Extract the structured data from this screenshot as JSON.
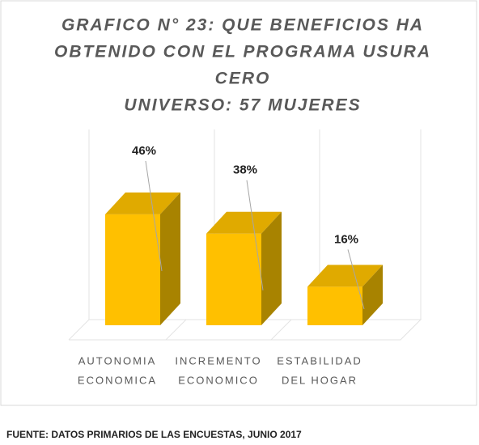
{
  "chart_data": {
    "type": "bar3d",
    "title": [
      "GRAFICO N° 23: QUE BENEFICIOS HA",
      "OBTENIDO CON EL PROGRAMA USURA",
      "CERO",
      "UNIVERSO: 57 MUJERES"
    ],
    "categories": [
      [
        "AUTONOMIA",
        "ECONOMICA"
      ],
      [
        "INCREMENTO",
        "ECONOMICO"
      ],
      [
        "ESTABILIDAD",
        "DEL HOGAR"
      ]
    ],
    "values": [
      46,
      38,
      16
    ],
    "value_labels": [
      "46%",
      "38%",
      "16%"
    ],
    "color": "#ffc000",
    "source": "FUENTE: DATOS PRIMARIOS DE LAS ENCUESTAS, JUNIO 2017"
  }
}
